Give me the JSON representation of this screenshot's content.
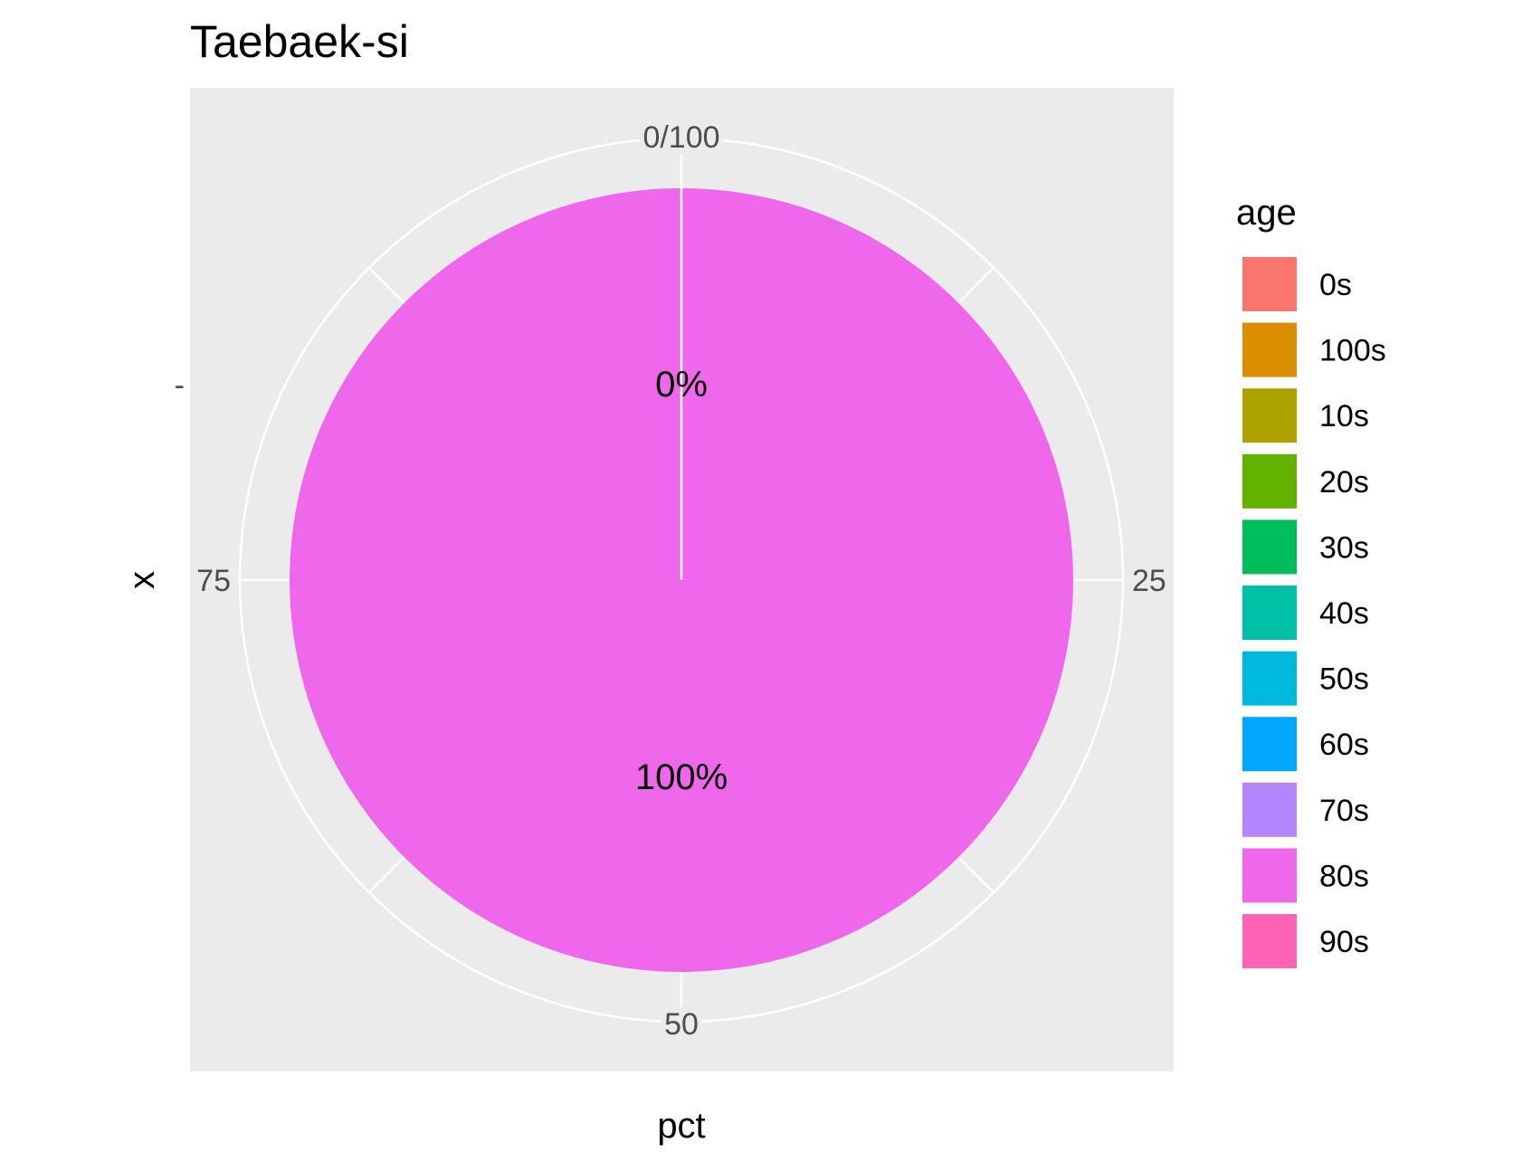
{
  "chart_data": {
    "type": "pie",
    "title": "Taebaek-si",
    "xlabel": "pct",
    "ylabel": "x",
    "y_tick_label": "-",
    "theta_ticks": [
      "0/100",
      "25",
      "50",
      "75"
    ],
    "slices": [
      {
        "label": "0%",
        "category": "0s",
        "value": 0
      },
      {
        "label": "100%",
        "category": "80s",
        "value": 100
      }
    ],
    "legend": {
      "title": "age",
      "position": "right",
      "items": [
        {
          "label": "0s",
          "color": "#F8766D"
        },
        {
          "label": "100s",
          "color": "#DB8E00"
        },
        {
          "label": "10s",
          "color": "#AEA200"
        },
        {
          "label": "20s",
          "color": "#64B200"
        },
        {
          "label": "30s",
          "color": "#00BD5C"
        },
        {
          "label": "40s",
          "color": "#00C1A7"
        },
        {
          "label": "50s",
          "color": "#00BADE"
        },
        {
          "label": "60s",
          "color": "#00A6FF"
        },
        {
          "label": "70s",
          "color": "#B385FF"
        },
        {
          "label": "80s",
          "color": "#EF67EB"
        },
        {
          "label": "90s",
          "color": "#FF63B6"
        }
      ]
    },
    "panel_background": "#EBEBEB",
    "grid": true
  }
}
